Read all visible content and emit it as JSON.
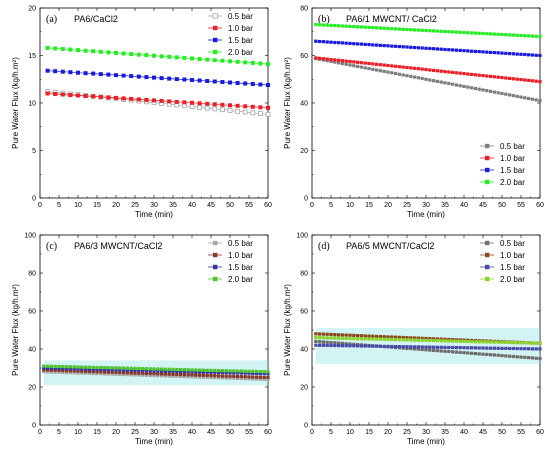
{
  "chart_data": [
    {
      "type": "line",
      "panel_label": "(a)",
      "title": "PA6/CaCl2",
      "xlabel": "Time (min)",
      "ylabel": "Pure Water Flux (kg/h.m²)",
      "xlim": [
        0,
        60
      ],
      "ylim": [
        0,
        20
      ],
      "xticks": [
        0,
        5,
        10,
        15,
        20,
        25,
        30,
        35,
        40,
        45,
        50,
        55,
        60
      ],
      "yticks": [
        0,
        5,
        10,
        15,
        20
      ],
      "legend_position": "top-right",
      "x": [
        2,
        4,
        6,
        8,
        10,
        12,
        14,
        16,
        18,
        20,
        22,
        24,
        26,
        28,
        30,
        32,
        34,
        36,
        38,
        40,
        42,
        44,
        46,
        48,
        50,
        52,
        54,
        56,
        58,
        60
      ],
      "series": [
        {
          "name": "0.5 bar",
          "color": "#a6a6a6",
          "marker": "square-open",
          "start": 11.2,
          "end": 8.8
        },
        {
          "name": "1.0 bar",
          "color": "#ee1c24",
          "marker": "square",
          "start": 11.0,
          "end": 9.5
        },
        {
          "name": "1.5 bar",
          "color": "#1a1adf",
          "marker": "square",
          "start": 13.4,
          "end": 11.9
        },
        {
          "name": "2.0 bar",
          "color": "#22ee22",
          "marker": "square",
          "start": 15.8,
          "end": 14.1
        }
      ]
    },
    {
      "type": "line",
      "panel_label": "(b)",
      "title": "PA6/1 MWCNT/ CaCl2",
      "xlabel": "Time (min)",
      "ylabel": "Pure Water Flux (kg/h.m²)",
      "xlim": [
        0,
        60
      ],
      "ylim": [
        0,
        80
      ],
      "xticks": [
        0,
        5,
        10,
        15,
        20,
        25,
        30,
        35,
        40,
        45,
        50,
        55,
        60
      ],
      "yticks": [
        0,
        20,
        40,
        60,
        80
      ],
      "legend_position": "bottom-right",
      "x": [
        1,
        2,
        3,
        4,
        5,
        6,
        7,
        8,
        9,
        10,
        11,
        12,
        13,
        14,
        15,
        16,
        17,
        18,
        19,
        20,
        21,
        22,
        23,
        24,
        25,
        26,
        27,
        28,
        29,
        30,
        31,
        32,
        33,
        34,
        35,
        36,
        37,
        38,
        39,
        40,
        41,
        42,
        43,
        44,
        45,
        46,
        47,
        48,
        49,
        50,
        51,
        52,
        53,
        54,
        55,
        56,
        57,
        58,
        59,
        60
      ],
      "series": [
        {
          "name": "0.5 bar",
          "color": "#7f7f7f",
          "marker": "square",
          "start": 59,
          "end": 41
        },
        {
          "name": "1.0 bar",
          "color": "#ee1c24",
          "marker": "square",
          "start": 59,
          "end": 49
        },
        {
          "name": "1.5 bar",
          "color": "#1a1adf",
          "marker": "square",
          "start": 66,
          "end": 60
        },
        {
          "name": "2.0 bar",
          "color": "#22ee22",
          "marker": "square",
          "start": 73,
          "end": 68
        }
      ]
    },
    {
      "type": "line",
      "panel_label": "(c)",
      "title": "PA6/3 MWCNT/CaCl2",
      "xlabel": "Time (min)",
      "ylabel": "Pure Water Flux (kg/h.m²)",
      "xlim": [
        0,
        60
      ],
      "ylim": [
        0,
        100
      ],
      "xticks": [
        0,
        5,
        10,
        15,
        20,
        25,
        30,
        35,
        40,
        45,
        50,
        55,
        60
      ],
      "yticks": [
        0,
        20,
        40,
        60,
        80,
        100
      ],
      "legend_position": "top-right",
      "x": [
        1,
        2,
        3,
        4,
        5,
        6,
        7,
        8,
        9,
        10,
        11,
        12,
        13,
        14,
        15,
        16,
        17,
        18,
        19,
        20,
        21,
        22,
        23,
        24,
        25,
        26,
        27,
        28,
        29,
        30,
        31,
        32,
        33,
        34,
        35,
        36,
        37,
        38,
        39,
        40,
        41,
        42,
        43,
        44,
        45,
        46,
        47,
        48,
        49,
        50,
        51,
        52,
        53,
        54,
        55,
        56,
        57,
        58,
        59,
        60
      ],
      "series": [
        {
          "name": "0.5 bar",
          "color": "#a6a6a6",
          "marker": "square",
          "start": 28,
          "end": 24
        },
        {
          "name": "1.0 bar",
          "color": "#8b3a2a",
          "marker": "square",
          "start": 29,
          "end": 25
        },
        {
          "name": "1.5 bar",
          "color": "#3434a0",
          "marker": "square",
          "start": 30,
          "end": 27
        },
        {
          "name": "2.0 bar",
          "color": "#4fc42f",
          "marker": "square",
          "start": 31,
          "end": 28
        }
      ]
    },
    {
      "type": "line",
      "panel_label": "(d)",
      "title": "PA6/5 MWCNT/CaCl2",
      "xlabel": "Time (min)",
      "ylabel": "Pure Water Flux (kg/h.m²)",
      "xlim": [
        0,
        60
      ],
      "ylim": [
        0,
        100
      ],
      "xticks": [
        0,
        5,
        10,
        15,
        20,
        25,
        30,
        35,
        40,
        45,
        50,
        55,
        60
      ],
      "yticks": [
        0,
        20,
        40,
        60,
        80,
        100
      ],
      "legend_position": "top-right",
      "x": [
        1,
        2,
        3,
        4,
        5,
        6,
        7,
        8,
        9,
        10,
        11,
        12,
        13,
        14,
        15,
        16,
        17,
        18,
        19,
        20,
        21,
        22,
        23,
        24,
        25,
        26,
        27,
        28,
        29,
        30,
        31,
        32,
        33,
        34,
        35,
        36,
        37,
        38,
        39,
        40,
        41,
        42,
        43,
        44,
        45,
        46,
        47,
        48,
        49,
        50,
        51,
        52,
        53,
        54,
        55,
        56,
        57,
        58,
        59,
        60
      ],
      "series": [
        {
          "name": "0.5 bar",
          "color": "#6e6e6e",
          "marker": "square",
          "start": 44,
          "end": 35
        },
        {
          "name": "1.0 bar",
          "color": "#8b4a1a",
          "marker": "square",
          "start": 48,
          "end": 43
        },
        {
          "name": "1.5 bar",
          "color": "#4a4aa8",
          "marker": "square",
          "start": 42,
          "end": 40
        },
        {
          "name": "2.0 bar",
          "color": "#8ad42a",
          "marker": "square",
          "start": 46,
          "end": 43
        }
      ]
    }
  ]
}
